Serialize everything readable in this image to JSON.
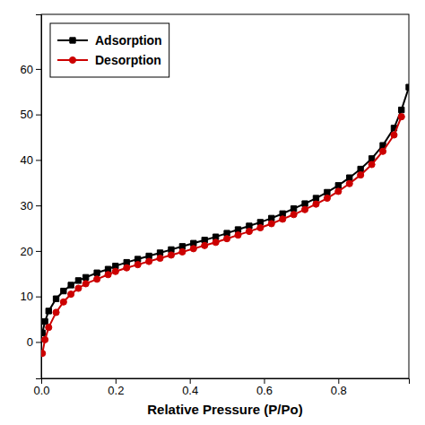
{
  "chart_data": {
    "type": "line",
    "xlabel": "Relative Pressure (P/Po)",
    "series": [
      {
        "name": "Adsorption",
        "color": "#000000",
        "marker": "square",
        "x": [
          0.003,
          0.01,
          0.02,
          0.04,
          0.06,
          0.08,
          0.1,
          0.12,
          0.15,
          0.18,
          0.2,
          0.23,
          0.26,
          0.29,
          0.32,
          0.35,
          0.38,
          0.41,
          0.44,
          0.47,
          0.5,
          0.53,
          0.56,
          0.59,
          0.62,
          0.65,
          0.68,
          0.71,
          0.74,
          0.77,
          0.8,
          0.83,
          0.86,
          0.89,
          0.92,
          0.95,
          0.97,
          0.99
        ],
        "values": [
          2.0,
          4.5,
          6.8,
          9.5,
          11.2,
          12.5,
          13.5,
          14.2,
          15.2,
          16.0,
          16.7,
          17.5,
          18.2,
          18.9,
          19.6,
          20.3,
          21.0,
          21.7,
          22.4,
          23.1,
          23.9,
          24.7,
          25.5,
          26.3,
          27.2,
          28.2,
          29.3,
          30.4,
          31.6,
          32.9,
          34.4,
          36.1,
          38.0,
          40.3,
          43.2,
          47.0,
          51.0,
          56.0
        ]
      },
      {
        "name": "Desorption",
        "color": "#cc0000",
        "marker": "circle",
        "x": [
          0.003,
          0.01,
          0.02,
          0.04,
          0.06,
          0.08,
          0.1,
          0.12,
          0.15,
          0.18,
          0.2,
          0.23,
          0.26,
          0.29,
          0.32,
          0.35,
          0.38,
          0.41,
          0.44,
          0.47,
          0.5,
          0.53,
          0.56,
          0.59,
          0.62,
          0.65,
          0.68,
          0.71,
          0.74,
          0.77,
          0.8,
          0.83,
          0.86,
          0.89,
          0.92,
          0.95,
          0.97
        ],
        "values": [
          -2.5,
          0.5,
          3.2,
          6.5,
          8.8,
          10.5,
          11.8,
          12.8,
          13.8,
          14.8,
          15.5,
          16.3,
          17.0,
          17.7,
          18.4,
          19.1,
          19.8,
          20.5,
          21.2,
          21.9,
          22.7,
          23.5,
          24.3,
          25.1,
          26.0,
          27.0,
          28.0,
          29.1,
          30.3,
          31.6,
          33.1,
          34.8,
          36.7,
          39.0,
          41.9,
          45.5,
          49.5
        ]
      }
    ],
    "xlim": [
      0.0,
      0.99
    ],
    "ylim": [
      -8,
      72
    ],
    "xticks": [
      {
        "value": 0.0,
        "label": "0.0"
      },
      0.2,
      0.4,
      0.6,
      0.8
    ],
    "yticks": [
      0,
      10,
      20,
      30,
      40,
      50,
      60
    ],
    "legend": "upper left",
    "grid": false
  }
}
